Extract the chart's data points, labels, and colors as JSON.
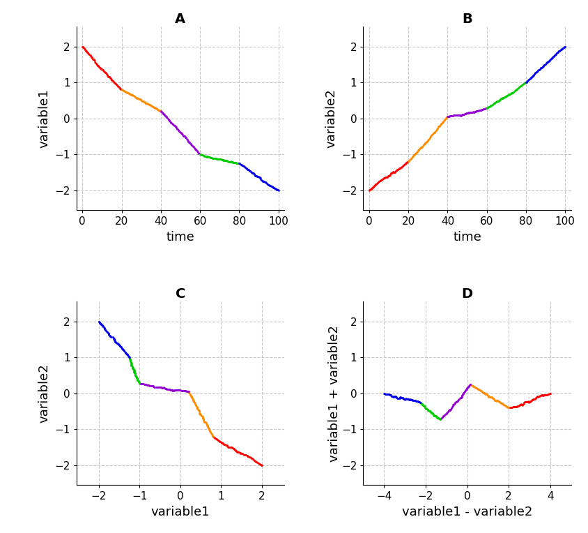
{
  "segment_colors": [
    "#FF0000",
    "#FF8C00",
    "#9400D3",
    "#00CC00",
    "#0000EE"
  ],
  "title_A": "A",
  "title_B": "B",
  "title_C": "C",
  "title_D": "D",
  "xlabel_AB": "time",
  "ylabel_A": "variable1",
  "ylabel_B": "variable2",
  "xlabel_C": "variable1",
  "ylabel_C": "variable2",
  "xlabel_D": "variable1 - variable2",
  "ylabel_D": "variable1 + variable2",
  "background_color": "#FFFFFF",
  "grid_color": "#C8C8C8",
  "title_fontsize": 14,
  "label_fontsize": 13,
  "tick_fontsize": 11,
  "point_size": 3.5
}
